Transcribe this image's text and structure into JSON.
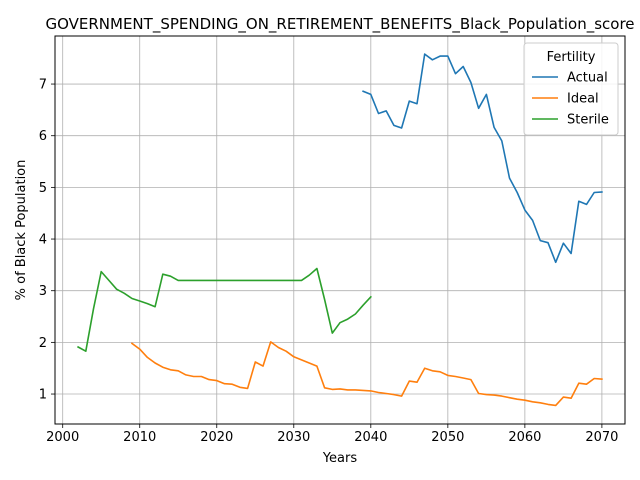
{
  "chart_data": {
    "type": "line",
    "title": "GOVERNMENT_SPENDING_ON_RETIREMENT_BENEFITS_Black_Population_score",
    "xlabel": "Years",
    "ylabel": "% of Black Population",
    "xlim": [
      1999,
      2073
    ],
    "ylim": [
      0.42,
      7.93
    ],
    "xticks": [
      2000,
      2010,
      2020,
      2030,
      2040,
      2050,
      2060,
      2070
    ],
    "yticks": [
      1,
      2,
      3,
      4,
      5,
      6,
      7
    ],
    "grid": true,
    "legend": {
      "title": "Fertility",
      "placement": "top-right"
    },
    "series": [
      {
        "name": "Actual",
        "color": "#1f77b4",
        "x": [
          2039,
          2040,
          2041,
          2042,
          2043,
          2044,
          2045,
          2046,
          2047,
          2048,
          2049,
          2050,
          2051,
          2052,
          2053,
          2054,
          2055,
          2056,
          2057,
          2058,
          2059,
          2060,
          2061,
          2062,
          2063,
          2064,
          2065,
          2066,
          2067,
          2068,
          2069,
          2070
        ],
        "y": [
          6.86,
          6.8,
          6.43,
          6.48,
          6.2,
          6.15,
          6.67,
          6.62,
          7.58,
          7.47,
          7.54,
          7.54,
          7.2,
          7.34,
          7.03,
          6.53,
          6.8,
          6.16,
          5.9,
          5.18,
          4.9,
          4.56,
          4.36,
          3.97,
          3.93,
          3.55,
          3.92,
          3.72,
          4.73,
          4.67,
          4.9,
          4.91
        ]
      },
      {
        "name": "Ideal",
        "color": "#ff7f0e",
        "x": [
          2009,
          2010,
          2011,
          2012,
          2013,
          2014,
          2015,
          2016,
          2017,
          2018,
          2019,
          2020,
          2021,
          2022,
          2023,
          2024,
          2025,
          2026,
          2027,
          2028,
          2029,
          2030,
          2031,
          2032,
          2033,
          2034,
          2035,
          2036,
          2037,
          2038,
          2039,
          2040,
          2041,
          2042,
          2043,
          2044,
          2045,
          2046,
          2047,
          2048,
          2049,
          2050,
          2051,
          2052,
          2053,
          2054,
          2055,
          2056,
          2057,
          2058,
          2059,
          2060,
          2061,
          2062,
          2063,
          2064,
          2065,
          2066,
          2067,
          2068,
          2069,
          2070
        ],
        "y": [
          1.98,
          1.87,
          1.71,
          1.6,
          1.52,
          1.47,
          1.45,
          1.37,
          1.34,
          1.34,
          1.28,
          1.26,
          1.2,
          1.19,
          1.13,
          1.11,
          1.62,
          1.54,
          2.01,
          1.9,
          1.83,
          1.72,
          1.66,
          1.6,
          1.54,
          1.12,
          1.09,
          1.1,
          1.08,
          1.08,
          1.07,
          1.06,
          1.03,
          1.01,
          0.99,
          0.96,
          1.25,
          1.23,
          1.5,
          1.45,
          1.43,
          1.36,
          1.34,
          1.31,
          1.28,
          1.01,
          0.99,
          0.98,
          0.96,
          0.93,
          0.9,
          0.88,
          0.85,
          0.83,
          0.8,
          0.78,
          0.94,
          0.92,
          1.21,
          1.19,
          1.3,
          1.29
        ]
      },
      {
        "name": "Sterile",
        "color": "#2ca02c",
        "x": [
          2002,
          2003,
          2004,
          2005,
          2006,
          2007,
          2008,
          2009,
          2010,
          2011,
          2012,
          2013,
          2014,
          2015,
          2016,
          2017,
          2018,
          2019,
          2020,
          2021,
          2022,
          2023,
          2024,
          2025,
          2026,
          2027,
          2028,
          2029,
          2030,
          2031,
          2032,
          2033,
          2034,
          2035,
          2036,
          2037,
          2038,
          2039,
          2040
        ],
        "y": [
          1.91,
          1.83,
          2.65,
          3.37,
          3.2,
          3.03,
          2.95,
          2.85,
          2.8,
          2.75,
          2.69,
          3.32,
          3.28,
          3.2,
          3.2,
          3.2,
          3.2,
          3.2,
          3.2,
          3.2,
          3.2,
          3.2,
          3.2,
          3.2,
          3.2,
          3.2,
          3.2,
          3.2,
          3.2,
          3.2,
          3.3,
          3.43,
          2.83,
          2.18,
          2.38,
          2.45,
          2.55,
          2.72,
          2.88
        ]
      }
    ]
  }
}
